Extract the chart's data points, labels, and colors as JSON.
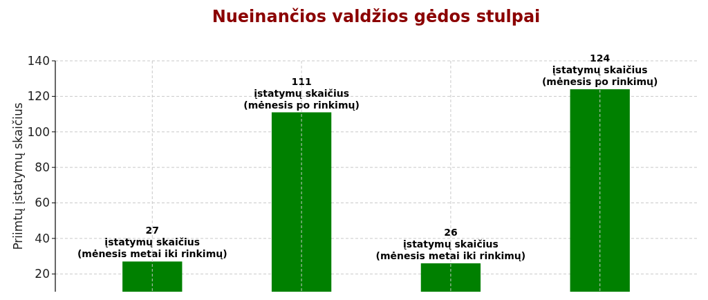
{
  "chart_data": {
    "type": "bar",
    "title": "Nueinančios valdžios gėdos stulpai",
    "ylabel": "Priimtų įstatymų skaičius",
    "categories": [
      null,
      null,
      null,
      null
    ],
    "values": [
      27,
      111,
      26,
      124
    ],
    "color": "#008000",
    "value_labels": [
      "27\nįstatymų skaičius\n(mėnesis metai iki rinkimų)",
      "111\nįstatymų skaičius\n(mėnesis po rinkimų)",
      "26\nįstatymų skaičius\n(mėnesis metai iki rinkimų)",
      "124\nįstatymų skaičius\n(mėnesis po rinkimų)"
    ],
    "ylim": [
      10,
      140
    ],
    "yticks": [
      20,
      40,
      60,
      80,
      100,
      120,
      140
    ],
    "grid": true
  }
}
